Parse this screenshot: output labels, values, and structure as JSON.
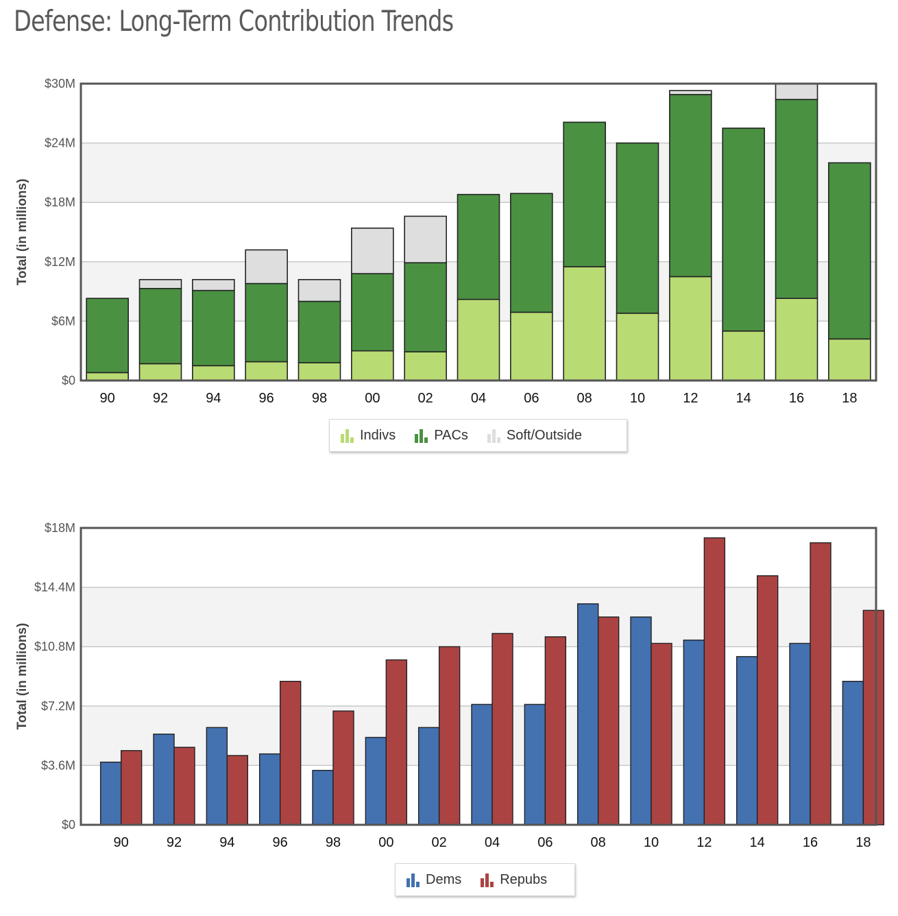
{
  "page": {
    "title": "Defense: Long-Term Contribution Trends"
  },
  "colors": {
    "indivs": "#b8db73",
    "pacs": "#4a9142",
    "soft": "#dedede",
    "dems": "#4471b0",
    "repubs": "#ac4343"
  },
  "chart_data": [
    {
      "type": "bar",
      "stacked": true,
      "categories": [
        "90",
        "92",
        "94",
        "96",
        "98",
        "00",
        "02",
        "04",
        "06",
        "08",
        "10",
        "12",
        "14",
        "16",
        "18"
      ],
      "ylabel": "Total (in millions)",
      "ylim": [
        0,
        30
      ],
      "yticks": [
        "$0",
        "$6M",
        "$12M",
        "$18M",
        "$24M",
        "$30M"
      ],
      "ytick_values": [
        0,
        6,
        12,
        18,
        24,
        30
      ],
      "grid": true,
      "legend_position": "bottom-center",
      "series": [
        {
          "name": "Indivs",
          "color": "#b8db73",
          "values": [
            0.8,
            1.7,
            1.5,
            1.9,
            1.8,
            3.0,
            2.9,
            8.2,
            6.9,
            11.5,
            6.8,
            10.5,
            5.0,
            8.3,
            4.2
          ]
        },
        {
          "name": "PACs",
          "color": "#4a9142",
          "values": [
            7.5,
            7.6,
            7.6,
            7.9,
            6.2,
            7.8,
            9.0,
            10.6,
            12.0,
            14.6,
            17.2,
            18.4,
            20.5,
            20.1,
            17.8
          ]
        },
        {
          "name": "Soft/Outside",
          "color": "#dedede",
          "values": [
            0,
            0.9,
            1.1,
            3.4,
            2.2,
            4.6,
            4.7,
            0,
            0,
            0,
            0,
            0.4,
            0,
            1.6,
            0
          ]
        }
      ]
    },
    {
      "type": "bar",
      "stacked": false,
      "categories": [
        "90",
        "92",
        "94",
        "96",
        "98",
        "00",
        "02",
        "04",
        "06",
        "08",
        "10",
        "12",
        "14",
        "16",
        "18"
      ],
      "ylabel": "Total (in millions)",
      "ylim": [
        0,
        18
      ],
      "yticks": [
        "$0",
        "$3.6M",
        "$7.2M",
        "$10.8M",
        "$14.4M",
        "$18M"
      ],
      "ytick_values": [
        0,
        3.6,
        7.2,
        10.8,
        14.4,
        18
      ],
      "grid": true,
      "legend_position": "bottom-center",
      "series": [
        {
          "name": "Dems",
          "color": "#4471b0",
          "values": [
            3.8,
            5.5,
            5.9,
            4.3,
            3.3,
            5.3,
            5.9,
            7.3,
            7.3,
            13.4,
            12.6,
            11.2,
            10.2,
            11.0,
            8.7
          ]
        },
        {
          "name": "Repubs",
          "color": "#ac4343",
          "values": [
            4.5,
            4.7,
            4.2,
            8.7,
            6.9,
            10.0,
            10.8,
            11.6,
            11.4,
            12.6,
            11.0,
            17.4,
            15.1,
            17.1,
            13.0
          ]
        }
      ]
    }
  ]
}
